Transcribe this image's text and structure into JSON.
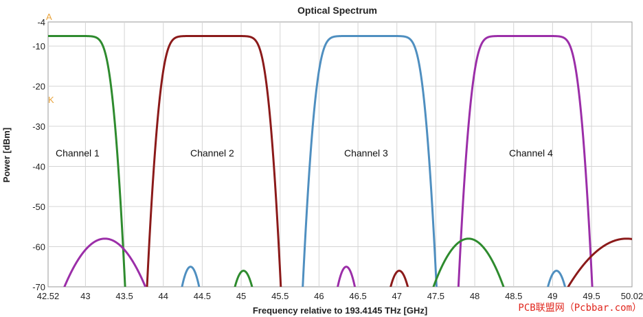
{
  "chart_data": {
    "type": "line",
    "title": "Optical Spectrum",
    "xlabel": "Frequency relative to 193.4145 THz [GHz]",
    "ylabel": "Power [dBm]",
    "xlim": [
      42.52,
      50.02
    ],
    "ylim": [
      -70,
      -4
    ],
    "x_ticks": [
      "42.52",
      "43",
      "43.5",
      "44",
      "44.5",
      "45",
      "45.5",
      "46",
      "46.5",
      "47",
      "47.5",
      "48",
      "48.5",
      "49",
      "49.5",
      "50.02"
    ],
    "y_ticks": [
      "-4",
      "-10",
      "-20",
      "-30",
      "-40",
      "-50",
      "-60",
      "-70"
    ],
    "grid": true,
    "annotations": [
      "Channel 1",
      "Channel 2",
      "Channel 3",
      "Channel 4"
    ],
    "markers": [
      "A",
      "K"
    ],
    "watermark": "PCB联盟网（Pcbbar.com）",
    "colors": {
      "green": "#2e8b2e",
      "red": "#8b1a1a",
      "blue": "#4f8fc0",
      "purple": "#9b2ea8"
    },
    "series": [
      {
        "color": "green",
        "type": "passband",
        "low": 42.0,
        "high": 43.2,
        "peak": -7.5
      },
      {
        "color": "red",
        "type": "passband",
        "low": 44.1,
        "high": 45.2,
        "peak": -7.5
      },
      {
        "color": "blue",
        "type": "passband",
        "low": 46.1,
        "high": 47.2,
        "peak": -7.5
      },
      {
        "color": "purple",
        "type": "passband",
        "low": 48.1,
        "high": 49.2,
        "peak": -7.5
      },
      {
        "color": "purple",
        "type": "lobe",
        "center": 43.25,
        "halfwidth": 0.52,
        "peak": -58
      },
      {
        "color": "green",
        "type": "lobe",
        "center": 47.92,
        "halfwidth": 0.45,
        "peak": -58
      },
      {
        "color": "red",
        "type": "lobe",
        "center": 49.95,
        "halfwidth": 0.75,
        "peak": -58
      },
      {
        "color": "blue",
        "type": "lobe",
        "center": 44.35,
        "halfwidth": 0.11,
        "peak": -65
      },
      {
        "color": "green",
        "type": "lobe",
        "center": 45.03,
        "halfwidth": 0.11,
        "peak": -66
      },
      {
        "color": "purple",
        "type": "lobe",
        "center": 46.35,
        "halfwidth": 0.11,
        "peak": -65
      },
      {
        "color": "red",
        "type": "lobe",
        "center": 47.03,
        "halfwidth": 0.11,
        "peak": -66
      },
      {
        "color": "blue",
        "type": "lobe",
        "center": 49.05,
        "halfwidth": 0.11,
        "peak": -66
      }
    ]
  }
}
